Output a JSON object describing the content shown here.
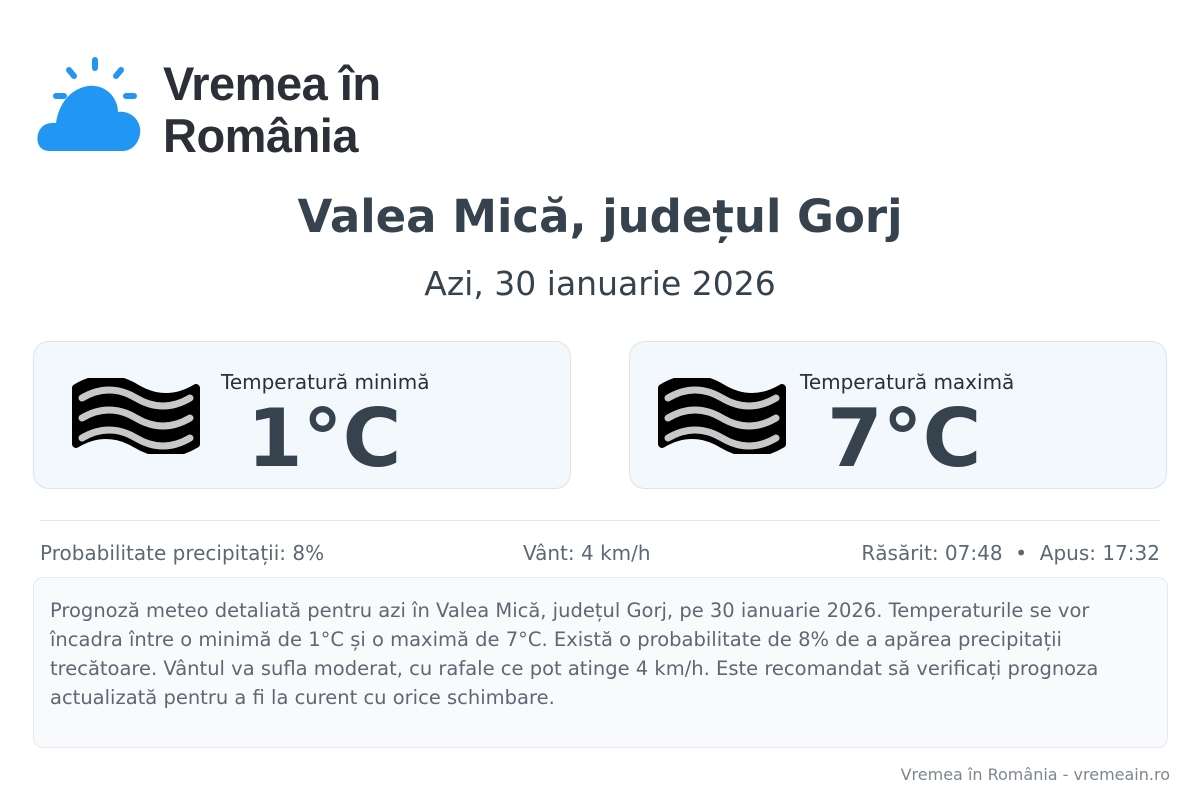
{
  "logo": {
    "line1": "Vremea în",
    "line2": "România",
    "color": "#2196f3"
  },
  "header": {
    "title": "Valea Mică, județul Gorj",
    "date": "Azi, 30 ianuarie 2026"
  },
  "cards": [
    {
      "label": "Temperatură minimă",
      "value": "1°C",
      "icon": "fog-icon"
    },
    {
      "label": "Temperatură maximă",
      "value": "7°C",
      "icon": "fog-icon"
    }
  ],
  "info": {
    "precipitation": "Probabilitate precipitații: 8%",
    "wind": "Vânt: 4 km/h",
    "sun": "Răsărit: 07:48  •  Apus: 17:32"
  },
  "description": "Prognoză meteo detaliată pentru azi în Valea Mică, județul Gorj, pe 30 ianuarie 2026. Temperaturile se vor încadra între o minimă de 1°C și o maximă de 7°C. Există o probabilitate de 8% de a apărea precipitații trecătoare. Vântul va sufla moderat, cu rafale ce pot atinge 4 km/h. Este recomandat să verificați prognoza actualizată pentru a fi la curent cu orice schimbare.",
  "footer": "Vremea în România - vremeain.ro"
}
